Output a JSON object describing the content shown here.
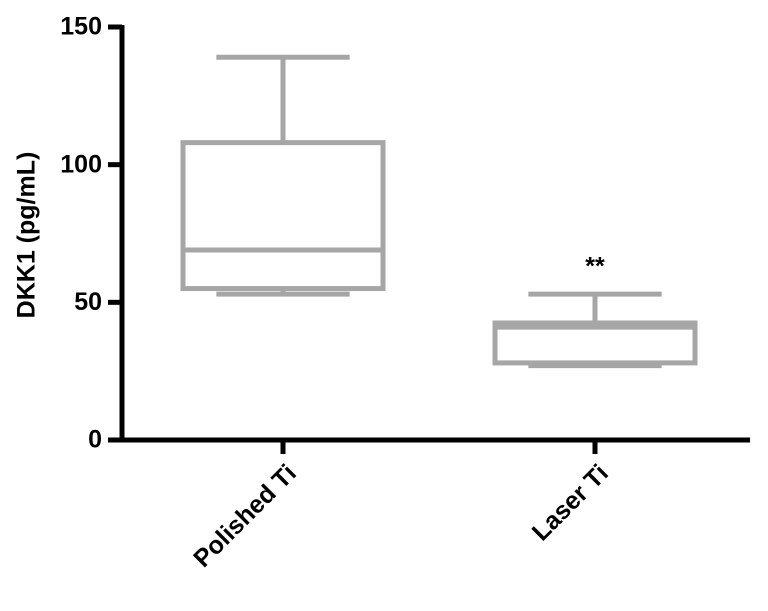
{
  "chart_data": {
    "type": "box",
    "y_label": "DKK1 (pg/mL)",
    "categories": [
      "Polished Ti",
      "Laser Ti"
    ],
    "boxes": [
      {
        "min": 53,
        "q1": 55,
        "median": 69,
        "q3": 108,
        "max": 139
      },
      {
        "min": 27,
        "q1": 28,
        "median": 41,
        "q3": 42.5,
        "max": 53
      }
    ],
    "significance": [
      null,
      "**"
    ],
    "color": "#a6a6a6",
    "ylim": [
      0,
      150
    ],
    "yticks": [
      0,
      50,
      100,
      150
    ]
  }
}
